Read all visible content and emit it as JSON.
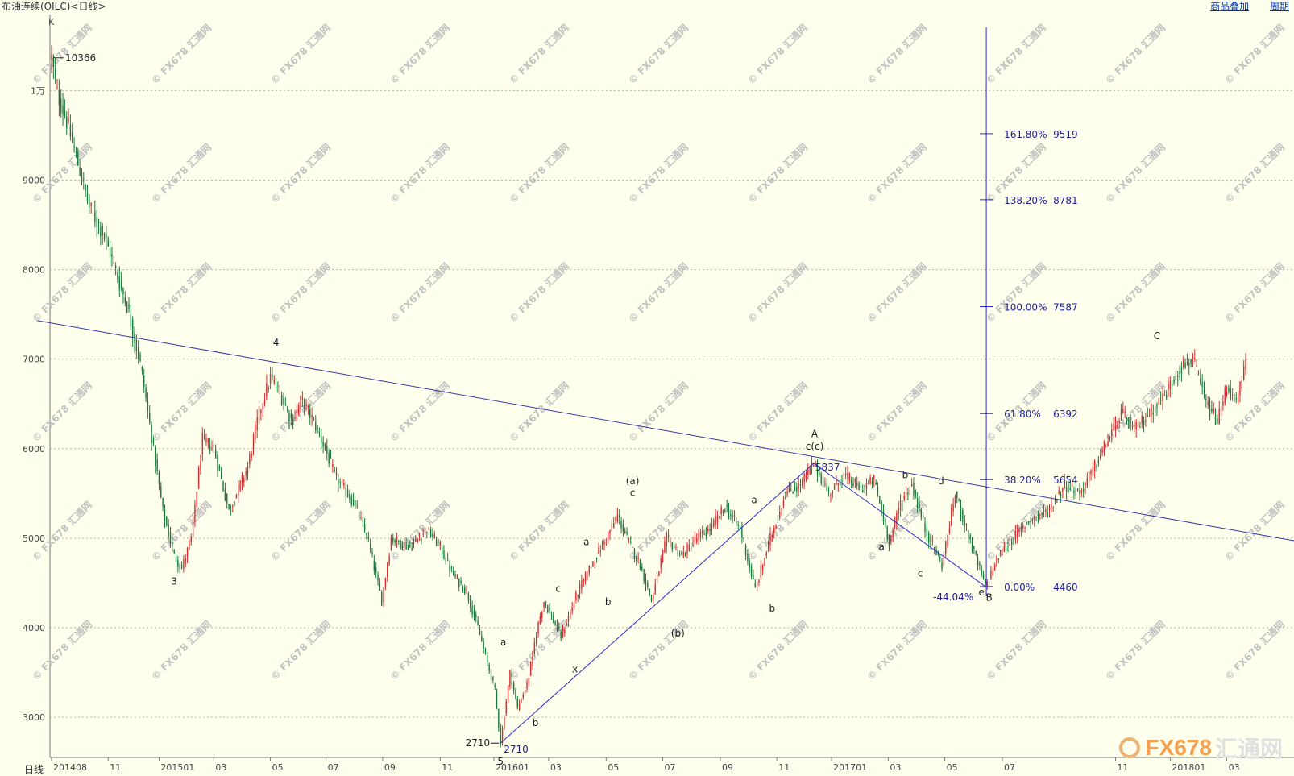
{
  "window": {
    "title": "布油连续(OILC)<日线>",
    "links": [
      "商品叠加",
      "周期"
    ],
    "period_label": "日线"
  },
  "watermark": {
    "text": "© FX678 汇通网",
    "brand_a": "FX678",
    "brand_b": "汇通网"
  },
  "chart_data": {
    "type": "candlestick",
    "ylim": [
      2550,
      10850
    ],
    "ytick_labels": [
      {
        "v": 3000,
        "t": "3000"
      },
      {
        "v": 4000,
        "t": "4000"
      },
      {
        "v": 5000,
        "t": "5000"
      },
      {
        "v": 6000,
        "t": "6000"
      },
      {
        "v": 7000,
        "t": "7000"
      },
      {
        "v": 8000,
        "t": "8000"
      },
      {
        "v": 9000,
        "t": "9000"
      },
      {
        "v": 10000,
        "t": "1万"
      }
    ],
    "corner_label": "K",
    "xticks": [
      {
        "t": "201408",
        "i": 0
      },
      {
        "t": "11",
        "i": 60
      },
      {
        "t": "201501",
        "i": 114
      },
      {
        "t": "03",
        "i": 172
      },
      {
        "t": "05",
        "i": 232
      },
      {
        "t": "07",
        "i": 291
      },
      {
        "t": "09",
        "i": 351
      },
      {
        "t": "11",
        "i": 412
      },
      {
        "t": "201601",
        "i": 469
      },
      {
        "t": "03",
        "i": 527
      },
      {
        "t": "05",
        "i": 588
      },
      {
        "t": "07",
        "i": 648
      },
      {
        "t": "09",
        "i": 709
      },
      {
        "t": "11",
        "i": 769
      },
      {
        "t": "201701",
        "i": 827
      },
      {
        "t": "03",
        "i": 887
      },
      {
        "t": "05",
        "i": 947
      },
      {
        "t": "07",
        "i": 1008
      },
      {
        "t": "11",
        "i": 1128
      },
      {
        "t": "201801",
        "i": 1186
      },
      {
        "t": "03",
        "i": 1246
      }
    ],
    "trend_path": [
      [
        0,
        10366
      ],
      [
        5,
        10000
      ],
      [
        15,
        9700
      ],
      [
        40,
        8700
      ],
      [
        55,
        8400
      ],
      [
        80,
        7600
      ],
      [
        95,
        6900
      ],
      [
        105,
        6200
      ],
      [
        118,
        5300
      ],
      [
        130,
        4800
      ],
      [
        138,
        4660
      ],
      [
        148,
        5000
      ],
      [
        160,
        6100
      ],
      [
        172,
        6000
      ],
      [
        188,
        5300
      ],
      [
        208,
        5800
      ],
      [
        220,
        6400
      ],
      [
        232,
        6800
      ],
      [
        245,
        6550
      ],
      [
        255,
        6300
      ],
      [
        265,
        6550
      ],
      [
        278,
        6300
      ],
      [
        290,
        6000
      ],
      [
        300,
        5700
      ],
      [
        320,
        5400
      ],
      [
        335,
        5000
      ],
      [
        350,
        4300
      ],
      [
        360,
        5000
      ],
      [
        380,
        4900
      ],
      [
        398,
        5100
      ],
      [
        412,
        4900
      ],
      [
        425,
        4600
      ],
      [
        440,
        4400
      ],
      [
        452,
        4000
      ],
      [
        462,
        3600
      ],
      [
        470,
        3300
      ],
      [
        476,
        2710
      ],
      [
        486,
        3500
      ],
      [
        494,
        3100
      ],
      [
        505,
        3400
      ],
      [
        515,
        4000
      ],
      [
        522,
        4300
      ],
      [
        540,
        3900
      ],
      [
        558,
        4400
      ],
      [
        572,
        4700
      ],
      [
        588,
        5000
      ],
      [
        600,
        5250
      ],
      [
        612,
        4950
      ],
      [
        624,
        4700
      ],
      [
        636,
        4300
      ],
      [
        652,
        5000
      ],
      [
        668,
        4800
      ],
      [
        684,
        5000
      ],
      [
        698,
        5100
      ],
      [
        714,
        5350
      ],
      [
        730,
        5100
      ],
      [
        746,
        4420
      ],
      [
        762,
        5000
      ],
      [
        778,
        5500
      ],
      [
        794,
        5600
      ],
      [
        808,
        5837
      ],
      [
        824,
        5500
      ],
      [
        840,
        5700
      ],
      [
        858,
        5550
      ],
      [
        872,
        5650
      ],
      [
        888,
        4950
      ],
      [
        900,
        5400
      ],
      [
        912,
        5600
      ],
      [
        926,
        5100
      ],
      [
        944,
        4700
      ],
      [
        958,
        5500
      ],
      [
        976,
        4900
      ],
      [
        990,
        4460
      ],
      [
        1004,
        4800
      ],
      [
        1020,
        5000
      ],
      [
        1036,
        5200
      ],
      [
        1056,
        5300
      ],
      [
        1074,
        5600
      ],
      [
        1090,
        5500
      ],
      [
        1106,
        5800
      ],
      [
        1120,
        6100
      ],
      [
        1134,
        6400
      ],
      [
        1148,
        6200
      ],
      [
        1164,
        6400
      ],
      [
        1180,
        6600
      ],
      [
        1196,
        6900
      ],
      [
        1210,
        7000
      ],
      [
        1224,
        6500
      ],
      [
        1236,
        6300
      ],
      [
        1246,
        6700
      ],
      [
        1256,
        6500
      ],
      [
        1266,
        6950
      ]
    ],
    "anchors": [
      {
        "label": "10366",
        "i": 0,
        "v": 10366
      },
      {
        "label": "2710",
        "i": 476,
        "v": 2710
      },
      {
        "label": "5837",
        "i": 808,
        "v": 5837
      },
      {
        "label": "4460",
        "i": 990,
        "v": 4460
      }
    ],
    "wave_labels": [
      {
        "t": "4",
        "i": 238,
        "v": 7150
      },
      {
        "t": "3",
        "i": 130,
        "v": 4480
      },
      {
        "t": "5",
        "i": 476,
        "v": 2470
      },
      {
        "t": "a",
        "i": 479,
        "v": 3800
      },
      {
        "t": "b",
        "i": 513,
        "v": 2900
      },
      {
        "t": "c",
        "i": 537,
        "v": 4400
      },
      {
        "t": "x",
        "i": 555,
        "v": 3500
      },
      {
        "t": "a",
        "i": 567,
        "v": 4920
      },
      {
        "t": "b",
        "i": 590,
        "v": 4250
      },
      {
        "t": "(a)",
        "i": 616,
        "v": 5600
      },
      {
        "t": "c",
        "i": 616,
        "v": 5470
      },
      {
        "t": "(b)",
        "i": 664,
        "v": 3900
      },
      {
        "t": "a",
        "i": 745,
        "v": 5390
      },
      {
        "t": "b",
        "i": 764,
        "v": 4180
      },
      {
        "t": "A",
        "i": 809,
        "v": 6130
      },
      {
        "t": "c(c)",
        "i": 809,
        "v": 5990
      },
      {
        "t": "b",
        "i": 905,
        "v": 5670
      },
      {
        "t": "a",
        "i": 880,
        "v": 4870
      },
      {
        "t": "c",
        "i": 921,
        "v": 4570
      },
      {
        "t": "d",
        "i": 943,
        "v": 5600
      },
      {
        "t": "e",
        "i": 986,
        "v": 4360
      },
      {
        "t": "B",
        "i": 994,
        "v": 4300
      },
      {
        "t": "C",
        "i": 1172,
        "v": 7220
      }
    ],
    "trendline": {
      "from": [
        -15,
        7430
      ],
      "to": [
        1345,
        4920
      ]
    },
    "zigzag": [
      [
        476,
        2710
      ],
      [
        808,
        5837
      ],
      [
        990,
        4460
      ]
    ],
    "fib": {
      "axis_i": 991,
      "levels": [
        {
          "pct": "161.80%",
          "v": 9519
        },
        {
          "pct": "138.20%",
          "v": 8781
        },
        {
          "pct": "100.00%",
          "v": 7587
        },
        {
          "pct": "61.80%",
          "v": 6392
        },
        {
          "pct": "38.20%",
          "v": 5654
        },
        {
          "pct": "0.00%",
          "v": 4460
        }
      ],
      "retrace_label": "-44.04%"
    }
  }
}
